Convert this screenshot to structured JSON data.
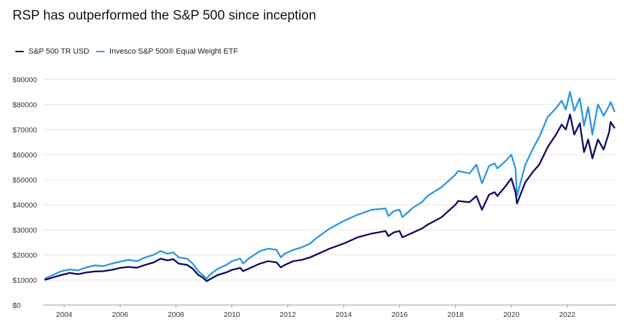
{
  "chart_data": {
    "type": "line",
    "title": "RSP has outperformed the S&P 500 since inception",
    "xlabel": "",
    "ylabel": "",
    "xlim": [
      2003.25,
      2023.75
    ],
    "ylim": [
      0,
      90000
    ],
    "y_ticks": [
      0,
      10000,
      20000,
      30000,
      40000,
      50000,
      60000,
      70000,
      80000,
      90000
    ],
    "y_tick_labels": [
      "$0",
      "$10000",
      "$20000",
      "$30000",
      "$40000",
      "$50000",
      "$60000",
      "$70000",
      "$80000",
      "$90000"
    ],
    "x_ticks": [
      2004,
      2006,
      2008,
      2010,
      2012,
      2014,
      2016,
      2018,
      2020,
      2022
    ],
    "x_tick_labels": [
      "2004",
      "2006",
      "2008",
      "2010",
      "2012",
      "2014",
      "2016",
      "2018",
      "2020",
      "2022"
    ],
    "grid": true,
    "legend_position": "top-left",
    "series": [
      {
        "name": "S&P 500 TR USD",
        "color": "#0d0d63",
        "x": [
          2003.3,
          2003.6,
          2003.9,
          2004.2,
          2004.5,
          2004.8,
          2005.1,
          2005.4,
          2005.7,
          2006.0,
          2006.3,
          2006.6,
          2006.9,
          2007.2,
          2007.45,
          2007.7,
          2007.9,
          2008.1,
          2008.4,
          2008.6,
          2008.8,
          2008.95,
          2009.1,
          2009.2,
          2009.5,
          2009.8,
          2010.0,
          2010.3,
          2010.4,
          2010.6,
          2010.8,
          2011.0,
          2011.3,
          2011.6,
          2011.75,
          2011.9,
          2012.2,
          2012.5,
          2012.8,
          2013.0,
          2013.5,
          2014.0,
          2014.5,
          2015.0,
          2015.5,
          2015.6,
          2015.8,
          2016.0,
          2016.1,
          2016.5,
          2016.8,
          2017.0,
          2017.5,
          2018.0,
          2018.1,
          2018.5,
          2018.75,
          2018.95,
          2019.2,
          2019.4,
          2019.5,
          2019.8,
          2020.0,
          2020.15,
          2020.2,
          2020.5,
          2020.8,
          2021.0,
          2021.3,
          2021.6,
          2021.8,
          2021.95,
          2022.1,
          2022.25,
          2022.45,
          2022.6,
          2022.75,
          2022.9,
          2023.1,
          2023.3,
          2023.5,
          2023.55,
          2023.7
        ],
        "values": [
          10000,
          11000,
          12000,
          12800,
          12300,
          13000,
          13400,
          13500,
          14000,
          14800,
          15200,
          14900,
          16000,
          17000,
          18500,
          17800,
          18300,
          16500,
          16000,
          14500,
          12000,
          11000,
          9500,
          10200,
          12000,
          13000,
          14000,
          14800,
          13500,
          14500,
          15500,
          16500,
          17500,
          17000,
          15000,
          16000,
          17500,
          18000,
          19000,
          20000,
          22500,
          24500,
          27000,
          28500,
          29500,
          27500,
          29000,
          29500,
          27000,
          29000,
          30500,
          32000,
          35000,
          40000,
          41500,
          41000,
          43500,
          38000,
          44000,
          45000,
          43500,
          47500,
          50500,
          45000,
          40500,
          49000,
          53500,
          56000,
          63000,
          68000,
          72000,
          70000,
          76000,
          68000,
          72500,
          61000,
          66000,
          58500,
          66000,
          62000,
          69000,
          73000,
          70500
        ]
      },
      {
        "name": "Invesco S&P 500® Equal Weight ETF",
        "color": "#2f96e3",
        "x": [
          2003.3,
          2003.6,
          2003.9,
          2004.2,
          2004.5,
          2004.8,
          2005.1,
          2005.4,
          2005.7,
          2006.0,
          2006.3,
          2006.6,
          2006.9,
          2007.2,
          2007.45,
          2007.7,
          2007.9,
          2008.1,
          2008.4,
          2008.6,
          2008.8,
          2008.95,
          2009.1,
          2009.2,
          2009.5,
          2009.8,
          2010.0,
          2010.3,
          2010.4,
          2010.6,
          2010.8,
          2011.0,
          2011.3,
          2011.6,
          2011.75,
          2011.9,
          2012.2,
          2012.5,
          2012.8,
          2013.0,
          2013.5,
          2014.0,
          2014.5,
          2015.0,
          2015.5,
          2015.6,
          2015.8,
          2016.0,
          2016.1,
          2016.5,
          2016.8,
          2017.0,
          2017.5,
          2018.0,
          2018.1,
          2018.5,
          2018.75,
          2018.95,
          2019.2,
          2019.4,
          2019.5,
          2019.8,
          2020.0,
          2020.15,
          2020.2,
          2020.5,
          2020.8,
          2021.0,
          2021.3,
          2021.6,
          2021.8,
          2021.95,
          2022.1,
          2022.25,
          2022.45,
          2022.6,
          2022.75,
          2022.9,
          2023.1,
          2023.3,
          2023.5,
          2023.55,
          2023.7
        ],
        "values": [
          10500,
          12000,
          13500,
          14200,
          13800,
          15000,
          15800,
          15500,
          16500,
          17300,
          18000,
          17500,
          19000,
          20000,
          21500,
          20500,
          21000,
          19000,
          18500,
          16500,
          13500,
          12000,
          10500,
          12000,
          14500,
          16000,
          17500,
          18500,
          16500,
          18500,
          20000,
          21500,
          22500,
          22000,
          19000,
          20500,
          22000,
          23000,
          24500,
          26500,
          30500,
          33500,
          36000,
          38000,
          38500,
          35500,
          37500,
          38000,
          35000,
          39000,
          41000,
          43500,
          47000,
          52000,
          53500,
          52500,
          56000,
          48500,
          55500,
          56500,
          54500,
          57500,
          60000,
          54500,
          43500,
          56000,
          63000,
          67000,
          75000,
          78500,
          81500,
          78000,
          85000,
          77500,
          82500,
          71500,
          79000,
          68000,
          80000,
          75500,
          79500,
          81000,
          77000
        ]
      }
    ]
  }
}
